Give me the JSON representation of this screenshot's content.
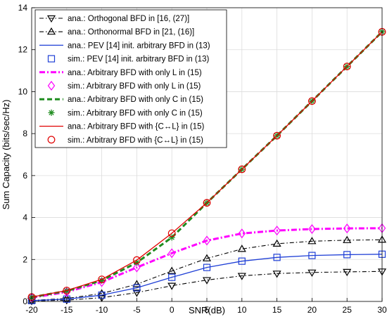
{
  "chart_data": {
    "type": "line",
    "xlabel": "SNR(dB)",
    "ylabel": "Sum Capacity (bits/sec/Hz)",
    "xlim": [
      -20,
      30
    ],
    "ylim": [
      0,
      14
    ],
    "xticks": [
      -20,
      -15,
      -10,
      -5,
      0,
      5,
      10,
      15,
      20,
      25,
      30
    ],
    "yticks": [
      0,
      2,
      4,
      6,
      8,
      10,
      12,
      14
    ],
    "grid": true,
    "legend_position": "top-left",
    "x": [
      -20,
      -15,
      -10,
      -5,
      0,
      5,
      10,
      15,
      20,
      25,
      30
    ],
    "series": [
      {
        "name": "ana.: Orthogonal BFD in [16, (27)]",
        "color": "#000000",
        "dash": "dashdot",
        "marker": "triangle-down",
        "values": [
          0.02,
          0.06,
          0.18,
          0.42,
          0.75,
          1.02,
          1.22,
          1.33,
          1.38,
          1.41,
          1.43
        ]
      },
      {
        "name": "ana.: Orthonormal BFD in [21, (16)]",
        "color": "#000000",
        "dash": "dashdot",
        "marker": "triangle-up",
        "values": [
          0.05,
          0.14,
          0.38,
          0.82,
          1.45,
          2.05,
          2.5,
          2.75,
          2.87,
          2.92,
          2.94
        ]
      },
      {
        "name": "ana.: PEV [14]  init. arbitrary BFD in (13)",
        "color": "#1f3fd6",
        "dash": "solid",
        "marker": "none",
        "values": [
          0.04,
          0.11,
          0.3,
          0.65,
          1.15,
          1.62,
          1.92,
          2.1,
          2.19,
          2.23,
          2.25
        ]
      },
      {
        "name": "sim.: PEV [14]  init. arbitrary BFD in (13)",
        "color": "#1f3fd6",
        "dash": "none",
        "marker": "square",
        "values": [
          0.04,
          0.11,
          0.3,
          0.65,
          1.15,
          1.62,
          1.92,
          2.1,
          2.19,
          2.23,
          2.25
        ]
      },
      {
        "name": "ana.: Arbitrary BFD with only L in (15)",
        "color": "#ff00ff",
        "dash": "dashdot-thick",
        "marker": "none",
        "values": [
          0.18,
          0.45,
          0.92,
          1.62,
          2.3,
          2.9,
          3.24,
          3.38,
          3.45,
          3.48,
          3.49
        ]
      },
      {
        "name": "sim.: Arbitrary BFD with only L in (15)",
        "color": "#ff00ff",
        "dash": "none",
        "marker": "diamond",
        "values": [
          0.18,
          0.45,
          0.92,
          1.62,
          2.3,
          2.9,
          3.24,
          3.38,
          3.45,
          3.48,
          3.49
        ]
      },
      {
        "name": "ana.: Arbitrary BFD with only C in (15)",
        "color": "#1e8c1e",
        "dash": "dashed-thick",
        "marker": "none",
        "values": [
          0.2,
          0.5,
          1.0,
          1.85,
          3.05,
          4.7,
          6.3,
          7.9,
          9.55,
          11.2,
          12.85
        ]
      },
      {
        "name": "sim.: Arbitrary BFD with only C in (15)",
        "color": "#1e8c1e",
        "dash": "none",
        "marker": "asterisk",
        "values": [
          0.2,
          0.5,
          1.0,
          1.85,
          3.05,
          4.7,
          6.3,
          7.9,
          9.55,
          11.2,
          12.85
        ]
      },
      {
        "name": "ana.: Arbitrary BFD with {C↔L} in (15)",
        "color": "#e00000",
        "dash": "solid",
        "marker": "none",
        "values": [
          0.21,
          0.52,
          1.05,
          1.97,
          3.25,
          4.7,
          6.3,
          7.9,
          9.55,
          11.2,
          12.85
        ]
      },
      {
        "name": "sim.: Arbitrary BFD with {C↔L} in (15)",
        "color": "#e00000",
        "dash": "none",
        "marker": "circle",
        "values": [
          0.21,
          0.52,
          1.05,
          1.97,
          3.25,
          4.7,
          6.3,
          7.9,
          9.55,
          11.2,
          12.85
        ]
      }
    ]
  }
}
